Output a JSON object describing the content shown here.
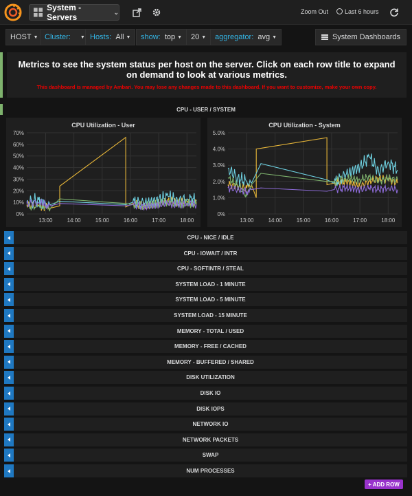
{
  "topnav": {
    "dashboard_title": "System - Servers",
    "zoom_out": "Zoom Out",
    "time_range": "Last 6 hours"
  },
  "templating": {
    "host": {
      "value": "HOST"
    },
    "cluster": {
      "label": "Cluster:"
    },
    "hosts": {
      "label": "Hosts:",
      "value": "All"
    },
    "show": {
      "label": "show:",
      "value": "top"
    },
    "count": {
      "value": "20"
    },
    "aggregator": {
      "label": "aggregator:",
      "value": "avg"
    },
    "system_dashboards": "System Dashboards"
  },
  "text_panel": {
    "main": "Metrics to see the system status per host on the server. Click on each row title to expand on demand to look at various metrics.",
    "warning": "This dashboard is managed by Ambari. You may lose any changes made to this dashboard. If you want to customize, make your own copy."
  },
  "expanded_row": {
    "title": "CPU - USER / SYSTEM"
  },
  "colors": {
    "yellow": "#eab839",
    "cyan": "#6ed0e0",
    "green": "#7eb26d",
    "purple": "#8d6bd8",
    "accent_blue": "#1f78c1",
    "add_row": "#9933cc"
  },
  "chart_data": [
    {
      "type": "line",
      "title": "CPU Utilization - User",
      "x_ticks": [
        "13:00",
        "14:00",
        "15:00",
        "16:00",
        "17:00",
        "18:00"
      ],
      "y_ticks": [
        "0%",
        "10%",
        "20%",
        "30%",
        "40%",
        "50%",
        "60%",
        "70%"
      ],
      "ylim": [
        0,
        70
      ],
      "xlim": [
        "12:20",
        "18:20"
      ],
      "grid": true,
      "series": [
        {
          "color": "#eab839",
          "x": [
            "12:20",
            "12:45",
            "13:00",
            "13:10",
            "13:30",
            "13:30",
            "15:50",
            "15:50",
            "16:05",
            "16:30",
            "17:00",
            "17:20",
            "17:40",
            "18:00",
            "18:20"
          ],
          "y": [
            8,
            7,
            6,
            5,
            7,
            24,
            66,
            6,
            9,
            7,
            10,
            12,
            10,
            11,
            9
          ]
        },
        {
          "color": "#6ed0e0",
          "x": [
            "12:20",
            "12:45",
            "13:00",
            "13:10",
            "13:30",
            "15:50",
            "16:05",
            "16:30",
            "17:00",
            "17:20",
            "17:40",
            "18:00",
            "18:20"
          ],
          "y": [
            10,
            12,
            9,
            8,
            11,
            8,
            10,
            9,
            12,
            15,
            11,
            13,
            12
          ]
        },
        {
          "color": "#7eb26d",
          "x": [
            "12:20",
            "12:45",
            "13:00",
            "13:10",
            "13:30",
            "15:50",
            "16:05",
            "16:30",
            "17:00",
            "17:20",
            "17:40",
            "18:00",
            "18:20"
          ],
          "y": [
            6,
            7,
            6,
            5,
            13,
            9,
            8,
            7,
            9,
            10,
            8,
            9,
            8
          ]
        },
        {
          "color": "#8d6bd8",
          "x": [
            "12:20",
            "12:45",
            "13:00",
            "13:10",
            "13:30",
            "15:50",
            "16:05",
            "16:30",
            "17:00",
            "17:20",
            "17:40",
            "18:00",
            "18:20"
          ],
          "y": [
            9,
            10,
            8,
            7,
            9,
            7,
            8,
            6,
            8,
            9,
            8,
            9,
            8
          ]
        }
      ]
    },
    {
      "type": "line",
      "title": "CPU Utilization - System",
      "x_ticks": [
        "13:00",
        "14:00",
        "15:00",
        "16:00",
        "17:00",
        "18:00"
      ],
      "y_ticks": [
        "0%",
        "1.0%",
        "2.0%",
        "3.0%",
        "4.0%",
        "5.0%"
      ],
      "ylim": [
        0,
        5
      ],
      "xlim": [
        "12:20",
        "18:20"
      ],
      "grid": true,
      "series": [
        {
          "color": "#eab839",
          "x": [
            "12:20",
            "12:40",
            "13:00",
            "13:10",
            "13:20",
            "13:20",
            "15:50",
            "15:50",
            "16:05",
            "16:30",
            "17:00",
            "17:20",
            "17:40",
            "18:00",
            "18:20"
          ],
          "y": [
            1.8,
            1.7,
            1.6,
            1.8,
            1.0,
            4.0,
            4.7,
            1.8,
            1.9,
            2.0,
            1.7,
            2.0,
            2.2,
            2.1,
            1.9
          ]
        },
        {
          "color": "#6ed0e0",
          "x": [
            "12:20",
            "12:40",
            "13:00",
            "13:10",
            "13:30",
            "15:50",
            "16:05",
            "16:30",
            "17:00",
            "17:20",
            "17:40",
            "18:00",
            "18:20"
          ],
          "y": [
            2.8,
            2.2,
            2.0,
            1.9,
            3.1,
            2.1,
            1.9,
            2.4,
            2.9,
            3.5,
            2.6,
            3.2,
            2.7
          ]
        },
        {
          "color": "#7eb26d",
          "x": [
            "12:20",
            "12:40",
            "13:00",
            "13:10",
            "13:30",
            "15:50",
            "16:05",
            "16:30",
            "17:00",
            "17:20",
            "17:40",
            "18:00",
            "18:20"
          ],
          "y": [
            2.2,
            1.8,
            1.1,
            1.8,
            2.5,
            2.0,
            2.0,
            2.2,
            2.1,
            2.3,
            2.0,
            2.2,
            2.1
          ]
        },
        {
          "color": "#8d6bd8",
          "x": [
            "12:20",
            "12:40",
            "13:00",
            "13:10",
            "13:30",
            "15:50",
            "16:05",
            "16:30",
            "17:00",
            "17:20",
            "17:40",
            "18:00",
            "18:20"
          ],
          "y": [
            1.6,
            1.5,
            1.4,
            1.5,
            1.6,
            1.4,
            1.5,
            1.6,
            1.5,
            1.6,
            1.5,
            1.6,
            1.5
          ]
        }
      ]
    }
  ],
  "collapsed_rows": [
    "CPU - NICE / IDLE",
    "CPU - IOWAIT / INTR",
    "CPU - SOFTINTR / STEAL",
    "SYSTEM LOAD - 1 MINUTE",
    "SYSTEM LOAD - 5 MINUTE",
    "SYSTEM LOAD - 15 MINUTE",
    "MEMORY - TOTAL / USED",
    "MEMORY - FREE / CACHED",
    "MEMORY - BUFFERED / SHARED",
    "DISK UTILIZATION",
    "DISK IO",
    "DISK IOPS",
    "NETWORK IO",
    "NETWORK PACKETS",
    "SWAP",
    "NUM PROCESSES"
  ],
  "add_row_label": "+ ADD ROW"
}
